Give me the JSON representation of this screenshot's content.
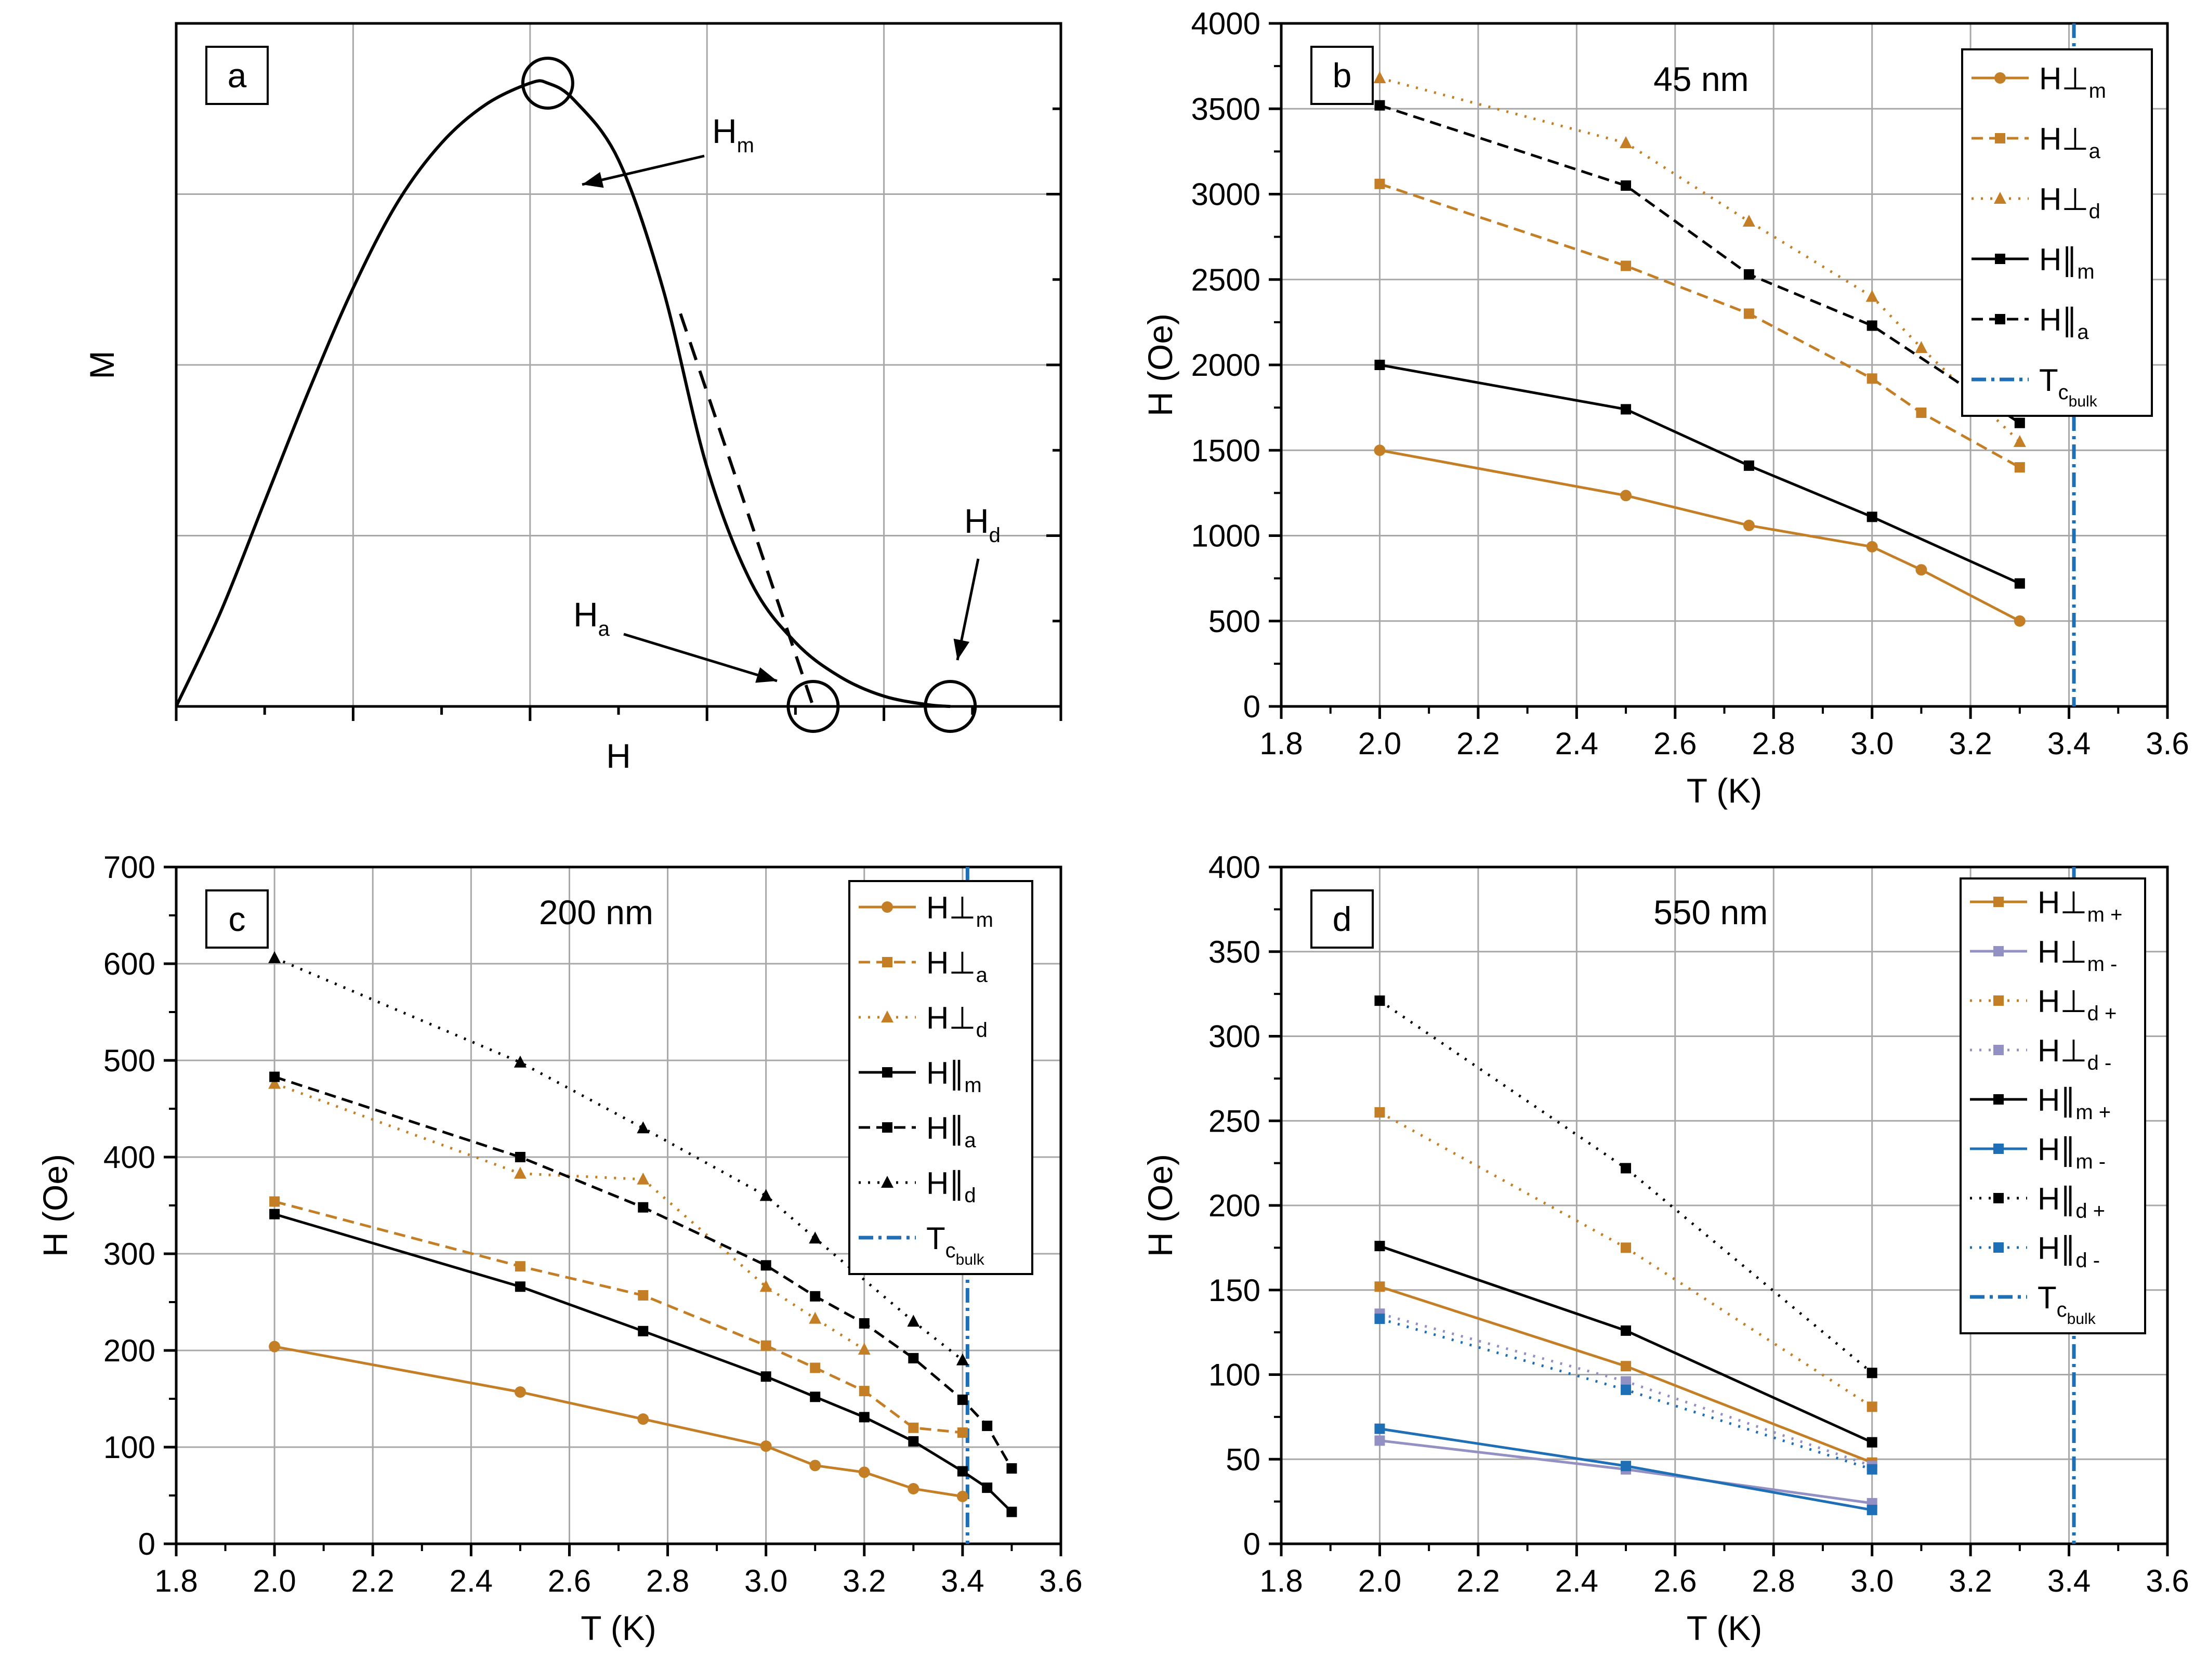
{
  "colors": {
    "perp": "#c47f26",
    "par": "#000000",
    "tc": "#1f6fb6",
    "perp_minus": "#9390c4",
    "par_minus": "#1f6fb6",
    "grid": "#a8a8a8"
  },
  "chart_data": [
    {
      "id": "a",
      "type": "line",
      "panel_label": "a",
      "xlabel": "H",
      "ylabel": "M",
      "description_curve": "schematic magnetization curve",
      "xlim": [
        0,
        10
      ],
      "ylim": [
        0,
        8
      ],
      "x_ticks_major": [
        0,
        2,
        4,
        6,
        8,
        10
      ],
      "y_ticks_major": [
        0,
        2,
        4,
        6,
        8
      ],
      "tick_labels_visible": false,
      "curve": {
        "x": [
          0,
          0.5,
          1,
          1.5,
          2,
          2.5,
          3,
          3.5,
          4,
          4.2,
          4.5,
          5,
          5.5,
          6,
          6.5,
          7,
          7.5,
          8,
          8.5,
          8.75
        ],
        "y": [
          0,
          1.1,
          2.4,
          3.7,
          4.9,
          5.9,
          6.6,
          7.05,
          7.3,
          7.3,
          7.1,
          6.4,
          4.9,
          2.8,
          1.45,
          0.75,
          0.35,
          0.12,
          0.02,
          0
        ]
      },
      "tangent": {
        "x": [
          5.7,
          7.2
        ],
        "y": [
          4.6,
          0
        ]
      },
      "markers": [
        {
          "name": "H_m",
          "text": "H",
          "sub": "m",
          "x": 4.2,
          "y": 7.3
        },
        {
          "name": "H_a",
          "text": "H",
          "sub": "a",
          "x": 7.2,
          "y": 0
        },
        {
          "name": "H_d",
          "text": "H",
          "sub": "d",
          "x": 8.75,
          "y": 0
        }
      ]
    },
    {
      "id": "b",
      "type": "line",
      "panel_label": "b",
      "annotation": "45 nm",
      "xlabel": "T (K)",
      "ylabel": "H (Oe)",
      "xlim": [
        1.8,
        3.6
      ],
      "ylim": [
        0,
        4000
      ],
      "x_ticks": [
        "1.8",
        "2.0",
        "2.2",
        "2.4",
        "2.6",
        "2.8",
        "3.0",
        "3.2",
        "3.4",
        "3.6"
      ],
      "y_ticks": [
        "0",
        "500",
        "1000",
        "1500",
        "2000",
        "2500",
        "3000",
        "3500",
        "4000"
      ],
      "tc_bulk": 3.41,
      "series": [
        {
          "name": "H⊥m",
          "base": "H⊥",
          "sub": "m",
          "color": "perp",
          "dash": "solid",
          "marker": "circle",
          "x": [
            2.0,
            2.5,
            2.75,
            3.0,
            3.1,
            3.3
          ],
          "y": [
            1500,
            1235,
            1060,
            935,
            800,
            500
          ]
        },
        {
          "name": "H⊥a",
          "base": "H⊥",
          "sub": "a",
          "color": "perp",
          "dash": "dash",
          "marker": "square",
          "x": [
            2.0,
            2.5,
            2.75,
            3.0,
            3.1,
            3.3
          ],
          "y": [
            3060,
            2580,
            2300,
            1920,
            1720,
            1400
          ]
        },
        {
          "name": "H⊥d",
          "base": "H⊥",
          "sub": "d",
          "color": "perp",
          "dash": "dot",
          "marker": "triangle",
          "x": [
            2.0,
            2.5,
            2.75,
            3.0,
            3.1,
            3.3
          ],
          "y": [
            3680,
            3300,
            2840,
            2400,
            2100,
            1550
          ]
        },
        {
          "name": "H∥m",
          "base": "H∥",
          "sub": "m",
          "color": "par",
          "dash": "solid",
          "marker": "square",
          "x": [
            2.0,
            2.5,
            2.75,
            3.0,
            3.3
          ],
          "y": [
            2000,
            1740,
            1410,
            1110,
            720
          ]
        },
        {
          "name": "H∥a",
          "base": "H∥",
          "sub": "a",
          "color": "par",
          "dash": "dash",
          "marker": "square",
          "x": [
            2.0,
            2.5,
            2.75,
            3.0,
            3.3
          ],
          "y": [
            3520,
            3050,
            2530,
            2230,
            1660
          ]
        }
      ],
      "legend": {
        "tc_label": "T",
        "tc_sub": "c",
        "tc_subsub": "bulk"
      }
    },
    {
      "id": "c",
      "type": "line",
      "panel_label": "c",
      "annotation": "200 nm",
      "xlabel": "T (K)",
      "ylabel": "H (Oe)",
      "xlim": [
        1.8,
        3.6
      ],
      "ylim": [
        0,
        700
      ],
      "x_ticks": [
        "1.8",
        "2.0",
        "2.2",
        "2.4",
        "2.6",
        "2.8",
        "3.0",
        "3.2",
        "3.4",
        "3.6"
      ],
      "y_ticks": [
        "0",
        "100",
        "200",
        "300",
        "400",
        "500",
        "600",
        "700"
      ],
      "tc_bulk": 3.41,
      "series": [
        {
          "name": "H⊥m",
          "base": "H⊥",
          "sub": "m",
          "color": "perp",
          "dash": "solid",
          "marker": "circle",
          "x": [
            2.0,
            2.5,
            2.75,
            3.0,
            3.1,
            3.2,
            3.3,
            3.4
          ],
          "y": [
            204,
            157,
            129,
            101,
            81,
            74,
            57,
            49
          ]
        },
        {
          "name": "H⊥a",
          "base": "H⊥",
          "sub": "a",
          "color": "perp",
          "dash": "dash",
          "marker": "square",
          "x": [
            2.0,
            2.5,
            2.75,
            3.0,
            3.1,
            3.2,
            3.3,
            3.4
          ],
          "y": [
            354,
            287,
            257,
            205,
            182,
            158,
            120,
            115
          ]
        },
        {
          "name": "H⊥d",
          "base": "H⊥",
          "sub": "d",
          "color": "perp",
          "dash": "dot",
          "marker": "triangle",
          "x": [
            2.0,
            2.5,
            2.75,
            3.0,
            3.1,
            3.2
          ],
          "y": [
            476,
            383,
            377,
            266,
            233,
            201
          ]
        },
        {
          "name": "H∥m",
          "base": "H∥",
          "sub": "m",
          "color": "par",
          "dash": "solid",
          "marker": "square",
          "x": [
            2.0,
            2.5,
            2.75,
            3.0,
            3.1,
            3.2,
            3.3,
            3.4,
            3.45,
            3.5
          ],
          "y": [
            341,
            266,
            220,
            173,
            152,
            131,
            106,
            75,
            58,
            33
          ]
        },
        {
          "name": "H∥a",
          "base": "H∥",
          "sub": "a",
          "color": "par",
          "dash": "dash",
          "marker": "square",
          "x": [
            2.0,
            2.5,
            2.75,
            3.0,
            3.1,
            3.2,
            3.3,
            3.4,
            3.45,
            3.5
          ],
          "y": [
            483,
            400,
            348,
            288,
            256,
            228,
            192,
            149,
            122,
            78
          ]
        },
        {
          "name": "H∥d",
          "base": "H∥",
          "sub": "d",
          "color": "par",
          "dash": "dot",
          "marker": "triangle",
          "x": [
            2.0,
            2.5,
            2.75,
            3.0,
            3.1,
            3.3,
            3.4
          ],
          "y": [
            606,
            498,
            430,
            360,
            316,
            230,
            190
          ]
        }
      ],
      "legend": {
        "tc_label": "T",
        "tc_sub": "c",
        "tc_subsub": "bulk"
      }
    },
    {
      "id": "d",
      "type": "line",
      "panel_label": "d",
      "annotation": "550 nm",
      "xlabel": "T (K)",
      "ylabel": "H (Oe)",
      "xlim": [
        1.8,
        3.6
      ],
      "ylim": [
        0,
        400
      ],
      "x_ticks": [
        "1.8",
        "2.0",
        "2.2",
        "2.4",
        "2.6",
        "2.8",
        "3.0",
        "3.2",
        "3.4",
        "3.6"
      ],
      "y_ticks": [
        "0",
        "50",
        "100",
        "150",
        "200",
        "250",
        "300",
        "350",
        "400"
      ],
      "tc_bulk": 3.41,
      "series": [
        {
          "name": "H⊥m +",
          "base": "H⊥",
          "sub": "m +",
          "color": "perp",
          "dash": "solid",
          "marker": "square",
          "x": [
            2.0,
            2.5,
            3.0
          ],
          "y": [
            152,
            105,
            48
          ]
        },
        {
          "name": "H⊥m -",
          "base": "H⊥",
          "sub": "m -",
          "color": "perp_minus",
          "dash": "solid",
          "marker": "square",
          "x": [
            2.0,
            2.5,
            3.0
          ],
          "y": [
            61,
            44,
            24
          ]
        },
        {
          "name": "H⊥d +",
          "base": "H⊥",
          "sub": "d +",
          "color": "perp",
          "dash": "dot",
          "marker": "square",
          "x": [
            2.0,
            2.5,
            3.0
          ],
          "y": [
            255,
            175,
            81
          ]
        },
        {
          "name": "H⊥d -",
          "base": "H⊥",
          "sub": "d -",
          "color": "perp_minus",
          "dash": "dot",
          "marker": "square",
          "x": [
            2.0,
            2.5,
            3.0
          ],
          "y": [
            136,
            96,
            46
          ]
        },
        {
          "name": "H∥m +",
          "base": "H∥",
          "sub": "m +",
          "color": "par",
          "dash": "solid",
          "marker": "square",
          "x": [
            2.0,
            2.5,
            3.0
          ],
          "y": [
            176,
            126,
            60
          ]
        },
        {
          "name": "H∥m -",
          "base": "H∥",
          "sub": "m -",
          "color": "par_minus",
          "dash": "solid",
          "marker": "square",
          "x": [
            2.0,
            2.5,
            3.0
          ],
          "y": [
            68,
            46,
            20
          ]
        },
        {
          "name": "H∥d +",
          "base": "H∥",
          "sub": "d +",
          "color": "par",
          "dash": "dot",
          "marker": "square",
          "x": [
            2.0,
            2.5,
            3.0
          ],
          "y": [
            321,
            222,
            101
          ]
        },
        {
          "name": "H∥d -",
          "base": "H∥",
          "sub": "d -",
          "color": "par_minus",
          "dash": "dot",
          "marker": "square",
          "x": [
            2.0,
            2.5,
            3.0
          ],
          "y": [
            133,
            91,
            44
          ]
        }
      ],
      "legend": {
        "tc_label": "T",
        "tc_sub": "c",
        "tc_subsub": "bulk"
      }
    }
  ]
}
